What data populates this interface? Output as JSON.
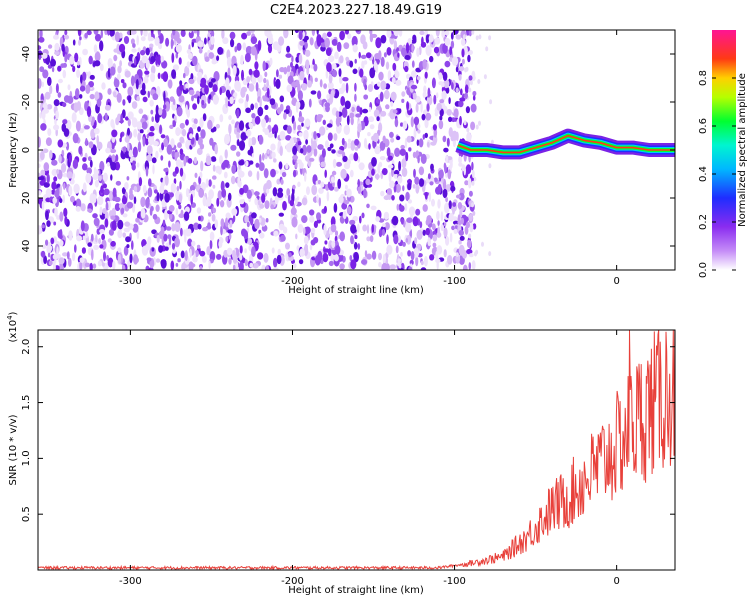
{
  "title": "C2E4.2023.227.18.49.G19",
  "chart_data": [
    {
      "type": "heatmap",
      "xlabel": "Height of straight line (km)",
      "ylabel": "Frequency (Hz)",
      "xlim": [
        -357,
        36
      ],
      "ylim": [
        -50,
        50
      ],
      "xticks": [
        -300,
        -200,
        -100,
        0
      ],
      "yticks": [
        -40,
        -20,
        0,
        20,
        40
      ],
      "noise_region_x": [
        -357,
        -95
      ],
      "signal_track": [
        {
          "x": -98,
          "y": 2
        },
        {
          "x": -90,
          "y": 0
        },
        {
          "x": -80,
          "y": 0
        },
        {
          "x": -70,
          "y": -1
        },
        {
          "x": -60,
          "y": -1
        },
        {
          "x": -50,
          "y": 1
        },
        {
          "x": -40,
          "y": 3
        },
        {
          "x": -30,
          "y": 6
        },
        {
          "x": -20,
          "y": 4
        },
        {
          "x": -10,
          "y": 3
        },
        {
          "x": 0,
          "y": 1
        },
        {
          "x": 10,
          "y": 1
        },
        {
          "x": 20,
          "y": 0
        },
        {
          "x": 36,
          "y": 0
        }
      ],
      "colorbar": {
        "label": "Normalized spectral amplitude",
        "range": [
          0,
          1
        ],
        "ticks": [
          0.0,
          0.2,
          0.4,
          0.6,
          0.8
        ],
        "colors": [
          "#ffffff",
          "#9b3cf5",
          "#1f2dff",
          "#00e5ff",
          "#00ff30",
          "#ffff00",
          "#ff2a1a",
          "#ff1493"
        ]
      }
    },
    {
      "type": "line",
      "xlabel": "Height of straight line (km)",
      "ylabel": "SNR (10 * v/v)",
      "y_multiplier": "(x10^4)",
      "xlim": [
        -357,
        36
      ],
      "ylim": [
        0,
        2.15
      ],
      "xticks": [
        -300,
        -200,
        -100,
        0
      ],
      "yticks": [
        0.5,
        1.0,
        1.5,
        2.0
      ],
      "series": [
        {
          "color": "#e8403a",
          "trend": [
            {
              "x": -357,
              "y": 0.02
            },
            {
              "x": -110,
              "y": 0.02
            },
            {
              "x": -90,
              "y": 0.06
            },
            {
              "x": -70,
              "y": 0.12
            },
            {
              "x": -55,
              "y": 0.3
            },
            {
              "x": -40,
              "y": 0.55
            },
            {
              "x": -30,
              "y": 0.65
            },
            {
              "x": -20,
              "y": 0.8
            },
            {
              "x": -10,
              "y": 0.95
            },
            {
              "x": 0,
              "y": 1.1
            },
            {
              "x": 10,
              "y": 1.3
            },
            {
              "x": 20,
              "y": 1.45
            },
            {
              "x": 30,
              "y": 1.6
            },
            {
              "x": 36,
              "y": 1.66
            }
          ],
          "spike": {
            "x": 8,
            "y": 2.15
          }
        }
      ]
    }
  ],
  "tick_labels": {
    "top_x": [
      "-300",
      "-200",
      "-100",
      "0"
    ],
    "top_y": [
      "40",
      "20",
      "0",
      "-20",
      "-40"
    ],
    "cbar": [
      "0.0",
      "0.2",
      "0.4",
      "0.6",
      "0.8"
    ],
    "bot_x": [
      "-300",
      "-200",
      "-100",
      "0"
    ],
    "bot_y": [
      "2.0",
      "1.5",
      "1.0",
      "0.5"
    ]
  }
}
